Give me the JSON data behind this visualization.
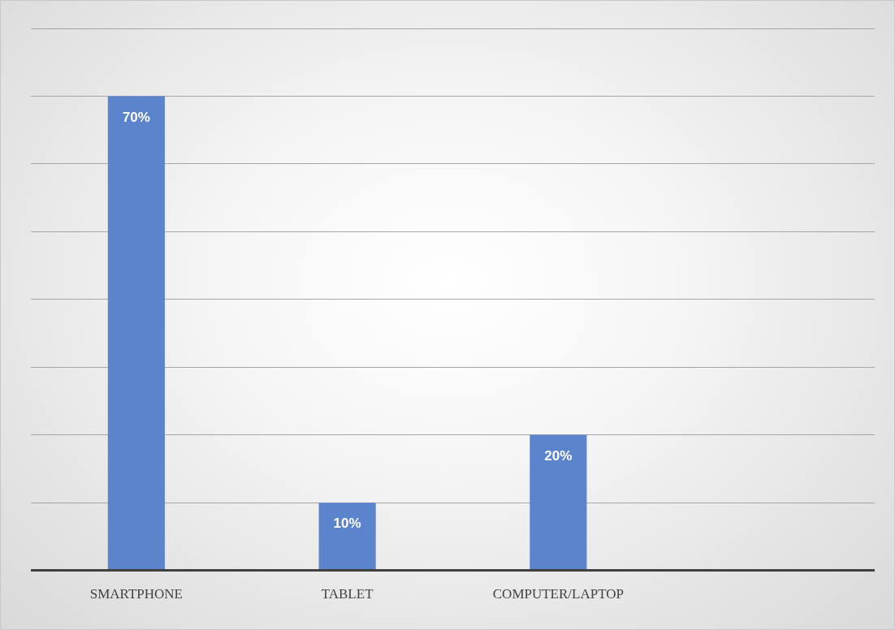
{
  "chart_data": {
    "type": "bar",
    "categories": [
      "SMARTPHONE",
      "TABLET",
      "COMPUTER/LAPTOP",
      null
    ],
    "values": [
      70,
      10,
      20,
      null
    ],
    "color": "#5b84cc",
    "ylim": [
      0,
      80
    ],
    "yticks": [
      {
        "value": 0,
        "label": null
      },
      {
        "value": 10,
        "label": null
      },
      {
        "value": 20,
        "label": null
      },
      {
        "value": 30,
        "label": null
      },
      {
        "value": 40,
        "label": null
      },
      {
        "value": 50,
        "label": null
      },
      {
        "value": 60,
        "label": null
      },
      {
        "value": 70,
        "label": null
      },
      {
        "value": 80,
        "label": null
      }
    ],
    "value_labels": [
      "70%",
      "10%",
      "20%",
      null
    ],
    "grid": "y",
    "tick_labels": "x",
    "legend": false
  }
}
